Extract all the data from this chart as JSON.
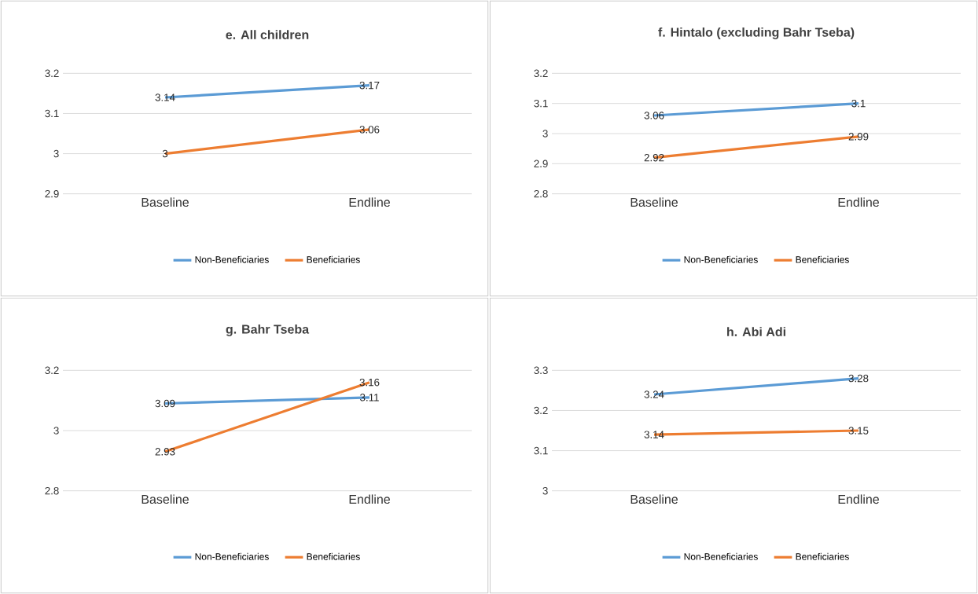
{
  "chart_data": [
    {
      "type": "line",
      "title": "e. All children",
      "categories": [
        "Baseline",
        "Endline"
      ],
      "series": [
        {
          "name": "Non-Beneficiaries",
          "color": "#5b9bd5",
          "values": [
            3.14,
            3.17
          ]
        },
        {
          "name": "Beneficiaries",
          "color": "#ed7d31",
          "values": [
            3,
            3.06
          ]
        }
      ],
      "ylim": [
        2.9,
        3.2
      ],
      "yticks": [
        2.9,
        3,
        3.1,
        3.2
      ],
      "grid": "y",
      "legend": "bottom",
      "data_labels": true,
      "marker": "none",
      "line_style": "solid"
    },
    {
      "type": "line",
      "title": "f. Hintalo (excluding Bahr Tseba)",
      "categories": [
        "Baseline",
        "Endline"
      ],
      "series": [
        {
          "name": "Non-Beneficiaries",
          "color": "#5b9bd5",
          "values": [
            3.06,
            3.1
          ]
        },
        {
          "name": "Beneficiaries",
          "color": "#ed7d31",
          "values": [
            2.92,
            2.99
          ]
        }
      ],
      "ylim": [
        2.8,
        3.2
      ],
      "yticks": [
        2.8,
        2.9,
        3,
        3.1,
        3.2
      ],
      "grid": "y",
      "legend": "bottom",
      "data_labels": true,
      "marker": "none",
      "line_style": "solid"
    },
    {
      "type": "line",
      "title": "g. Bahr Tseba",
      "categories": [
        "Baseline",
        "Endline"
      ],
      "series": [
        {
          "name": "Non-Beneficiaries",
          "color": "#5b9bd5",
          "values": [
            3.09,
            3.11
          ]
        },
        {
          "name": "Beneficiaries",
          "color": "#ed7d31",
          "values": [
            2.93,
            3.16
          ]
        }
      ],
      "ylim": [
        2.8,
        3.2
      ],
      "yticks": [
        2.8,
        3,
        3.2
      ],
      "grid": "y",
      "legend": "bottom",
      "data_labels": true,
      "marker": "none",
      "line_style": "solid"
    },
    {
      "type": "line",
      "title": "h. Abi Adi",
      "categories": [
        "Baseline",
        "Endline"
      ],
      "series": [
        {
          "name": "Non-Beneficiaries",
          "color": "#5b9bd5",
          "values": [
            3.24,
            3.28
          ]
        },
        {
          "name": "Beneficiaries",
          "color": "#ed7d31",
          "values": [
            3.14,
            3.15
          ]
        }
      ],
      "ylim": [
        3,
        3.3
      ],
      "yticks": [
        3,
        3.1,
        3.2,
        3.3
      ],
      "grid": "y",
      "legend": "bottom",
      "data_labels": true,
      "marker": "none",
      "line_style": "solid"
    }
  ]
}
